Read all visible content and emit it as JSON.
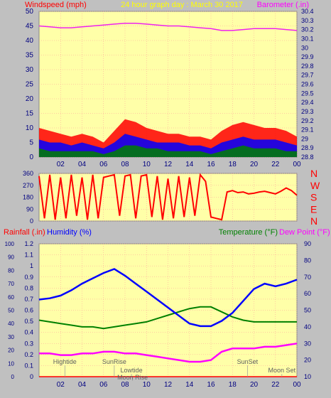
{
  "header": {
    "left_label": "Windspeed (mph)",
    "title": "24 hour graph day : March 30 2017",
    "right_label": "Barometer (.in)"
  },
  "colors": {
    "background": "#c0c0c0",
    "plot_bg": "#ffffa8",
    "wind": "#ff0000",
    "gust": "#0000ff",
    "avg": "#008000",
    "barometer": "#ee22ee",
    "title": "#ffff00",
    "direction": "#ff0000",
    "rain": "#ff0000",
    "humidity": "#0000ff",
    "temperature": "#008000",
    "dewpoint": "#ff00ff",
    "axis_text": "#000080",
    "grid": "#ff9999",
    "annotation": "#606060"
  },
  "x_ticks": [
    "02",
    "04",
    "06",
    "08",
    "10",
    "12",
    "14",
    "16",
    "18",
    "20",
    "22",
    "00"
  ],
  "chart_data": [
    {
      "type": "line",
      "name": "wind-panel",
      "x_range_hours": [
        0,
        24
      ],
      "ylim_left": [
        0,
        50
      ],
      "left_ticks": [
        0,
        5,
        10,
        15,
        20,
        25,
        30,
        35,
        40,
        45,
        50
      ],
      "ylim_right": [
        28.8,
        30.4
      ],
      "right_ticks": [
        "28.8",
        "28.9",
        "29",
        "29.1",
        "29.2",
        "29.3",
        "29.4",
        "29.5",
        "29.6",
        "29.7",
        "29.8",
        "29.9",
        "30",
        "30.1",
        "30.2",
        "30.3",
        "30.4"
      ],
      "series": [
        {
          "key": "wind_peak",
          "hours": [
            0,
            1,
            2,
            3,
            4,
            5,
            6,
            7,
            8,
            9,
            10,
            11,
            12,
            13,
            14,
            15,
            16,
            17,
            18,
            19,
            20,
            21,
            22,
            23,
            24
          ],
          "values": [
            10,
            9,
            8,
            7,
            8,
            7,
            5,
            9,
            13,
            12,
            10,
            9,
            8,
            8,
            7,
            7,
            6,
            9,
            11,
            12,
            11,
            10,
            10,
            9,
            7
          ]
        },
        {
          "key": "wind_mean",
          "hours": [
            0,
            1,
            2,
            3,
            4,
            5,
            6,
            7,
            8,
            9,
            10,
            11,
            12,
            13,
            14,
            15,
            16,
            17,
            18,
            19,
            20,
            21,
            22,
            23,
            24
          ],
          "values": [
            6,
            5,
            5,
            4,
            5,
            4,
            3,
            5,
            8,
            7,
            6,
            5,
            5,
            5,
            4,
            4,
            3,
            5,
            6,
            7,
            6,
            6,
            6,
            5,
            4
          ]
        },
        {
          "key": "wind_low",
          "hours": [
            0,
            1,
            2,
            3,
            4,
            5,
            6,
            7,
            8,
            9,
            10,
            11,
            12,
            13,
            14,
            15,
            16,
            17,
            18,
            19,
            20,
            21,
            22,
            23,
            24
          ],
          "values": [
            3,
            2,
            2,
            2,
            2,
            2,
            1,
            2,
            4,
            4,
            3,
            3,
            2,
            2,
            2,
            2,
            1,
            2,
            3,
            4,
            3,
            3,
            3,
            2,
            2
          ]
        },
        {
          "key": "barometer",
          "hours": [
            0,
            1,
            2,
            3,
            4,
            5,
            6,
            7,
            8,
            9,
            10,
            11,
            12,
            13,
            14,
            15,
            16,
            17,
            18,
            19,
            20,
            21,
            22,
            23,
            24
          ],
          "values": [
            30.24,
            30.23,
            30.22,
            30.22,
            30.23,
            30.24,
            30.25,
            30.26,
            30.27,
            30.27,
            30.26,
            30.25,
            30.24,
            30.24,
            30.23,
            30.22,
            30.21,
            30.19,
            30.19,
            30.2,
            30.21,
            30.21,
            30.21,
            30.2,
            30.19
          ]
        }
      ]
    },
    {
      "type": "line",
      "name": "direction-panel",
      "ylim": [
        0,
        360
      ],
      "ticks": [
        0,
        90,
        180,
        270,
        360
      ],
      "compass_labels": [
        "N",
        "W",
        "S",
        "E",
        "N"
      ],
      "series": [
        {
          "key": "direction",
          "hours": [
            0,
            0.5,
            1,
            1.5,
            2,
            2.5,
            3,
            3.5,
            4,
            4.5,
            5,
            5.5,
            6,
            6.5,
            7,
            7.5,
            8,
            8.5,
            9,
            9.5,
            10,
            10.5,
            11,
            11.5,
            12,
            12.5,
            13,
            13.5,
            14,
            14.5,
            15,
            15.5,
            16,
            16.5,
            17,
            17.5,
            18,
            18.5,
            19,
            19.5,
            20,
            20.5,
            21,
            21.5,
            22,
            22.5,
            23,
            23.5,
            24
          ],
          "values": [
            340,
            20,
            350,
            10,
            330,
            20,
            350,
            40,
            330,
            10,
            350,
            20,
            330,
            340,
            350,
            40,
            340,
            350,
            20,
            340,
            350,
            30,
            340,
            10,
            320,
            20,
            340,
            30,
            330,
            40,
            350,
            300,
            30,
            20,
            10,
            220,
            230,
            215,
            220,
            205,
            210,
            220,
            225,
            215,
            205,
            225,
            250,
            230,
            195
          ]
        }
      ]
    },
    {
      "type": "line",
      "name": "climate-panel",
      "ylim_humidity": [
        0,
        100
      ],
      "humidity_ticks": [
        0,
        10,
        20,
        30,
        40,
        50,
        60,
        70,
        80,
        90,
        100
      ],
      "ylim_rain": [
        0,
        1.2
      ],
      "rain_ticks": [
        "0",
        "0.1",
        "0.2",
        "0.3",
        "0.4",
        "0.5",
        "0.6",
        "0.7",
        "0.8",
        "0.9",
        "1",
        "1.1",
        "1.2"
      ],
      "ylim_temp": [
        10,
        90
      ],
      "temp_ticks": [
        10,
        20,
        30,
        40,
        50,
        60,
        70,
        80,
        90
      ],
      "series": [
        {
          "key": "humidity",
          "hours": [
            0,
            1,
            2,
            3,
            4,
            5,
            6,
            7,
            8,
            9,
            10,
            11,
            12,
            13,
            14,
            15,
            16,
            17,
            18,
            19,
            20,
            21,
            22,
            23,
            24
          ],
          "values": [
            58,
            59,
            61,
            65,
            70,
            74,
            78,
            81,
            76,
            70,
            64,
            58,
            52,
            46,
            40,
            38,
            38,
            42,
            48,
            57,
            66,
            70,
            68,
            70,
            73
          ]
        },
        {
          "key": "temperature",
          "hours": [
            0,
            1,
            2,
            3,
            4,
            5,
            6,
            7,
            8,
            9,
            10,
            11,
            12,
            13,
            14,
            15,
            16,
            17,
            18,
            19,
            20,
            21,
            22,
            23,
            24
          ],
          "values": [
            44,
            43,
            42,
            41,
            40,
            40,
            39,
            40,
            41,
            42,
            43,
            45,
            47,
            49,
            51,
            52,
            52,
            49,
            46,
            44,
            43,
            43,
            43,
            43,
            43
          ]
        },
        {
          "key": "dewpoint",
          "hours": [
            0,
            1,
            2,
            3,
            4,
            5,
            6,
            7,
            8,
            9,
            10,
            11,
            12,
            13,
            14,
            15,
            16,
            17,
            18,
            19,
            20,
            21,
            22,
            23,
            24
          ],
          "values": [
            24,
            24,
            23,
            23,
            24,
            24,
            25,
            25,
            24,
            24,
            23,
            22,
            21,
            20,
            19,
            19,
            20,
            25,
            27,
            27,
            27,
            28,
            28,
            29,
            30
          ]
        },
        {
          "key": "rainfall",
          "hours": [
            0,
            24
          ],
          "values": [
            0,
            0
          ]
        }
      ],
      "legend": {
        "rain": "Rainfall (.in)",
        "humidity": "Humidity (%)",
        "temperature": "Temperature (°F)",
        "dewpoint": "Dew Point (°F)"
      },
      "events": [
        {
          "label": "Hightide",
          "hour": 2.4
        },
        {
          "label": "SunRise",
          "hour": 7.0
        },
        {
          "label": "Lowtide",
          "hour": 8.6
        },
        {
          "label": "Moon Rise",
          "hour": 8.7
        },
        {
          "label": "SunSet",
          "hour": 19.4
        },
        {
          "label": "Moon Set",
          "hour": 22.6
        }
      ]
    }
  ]
}
